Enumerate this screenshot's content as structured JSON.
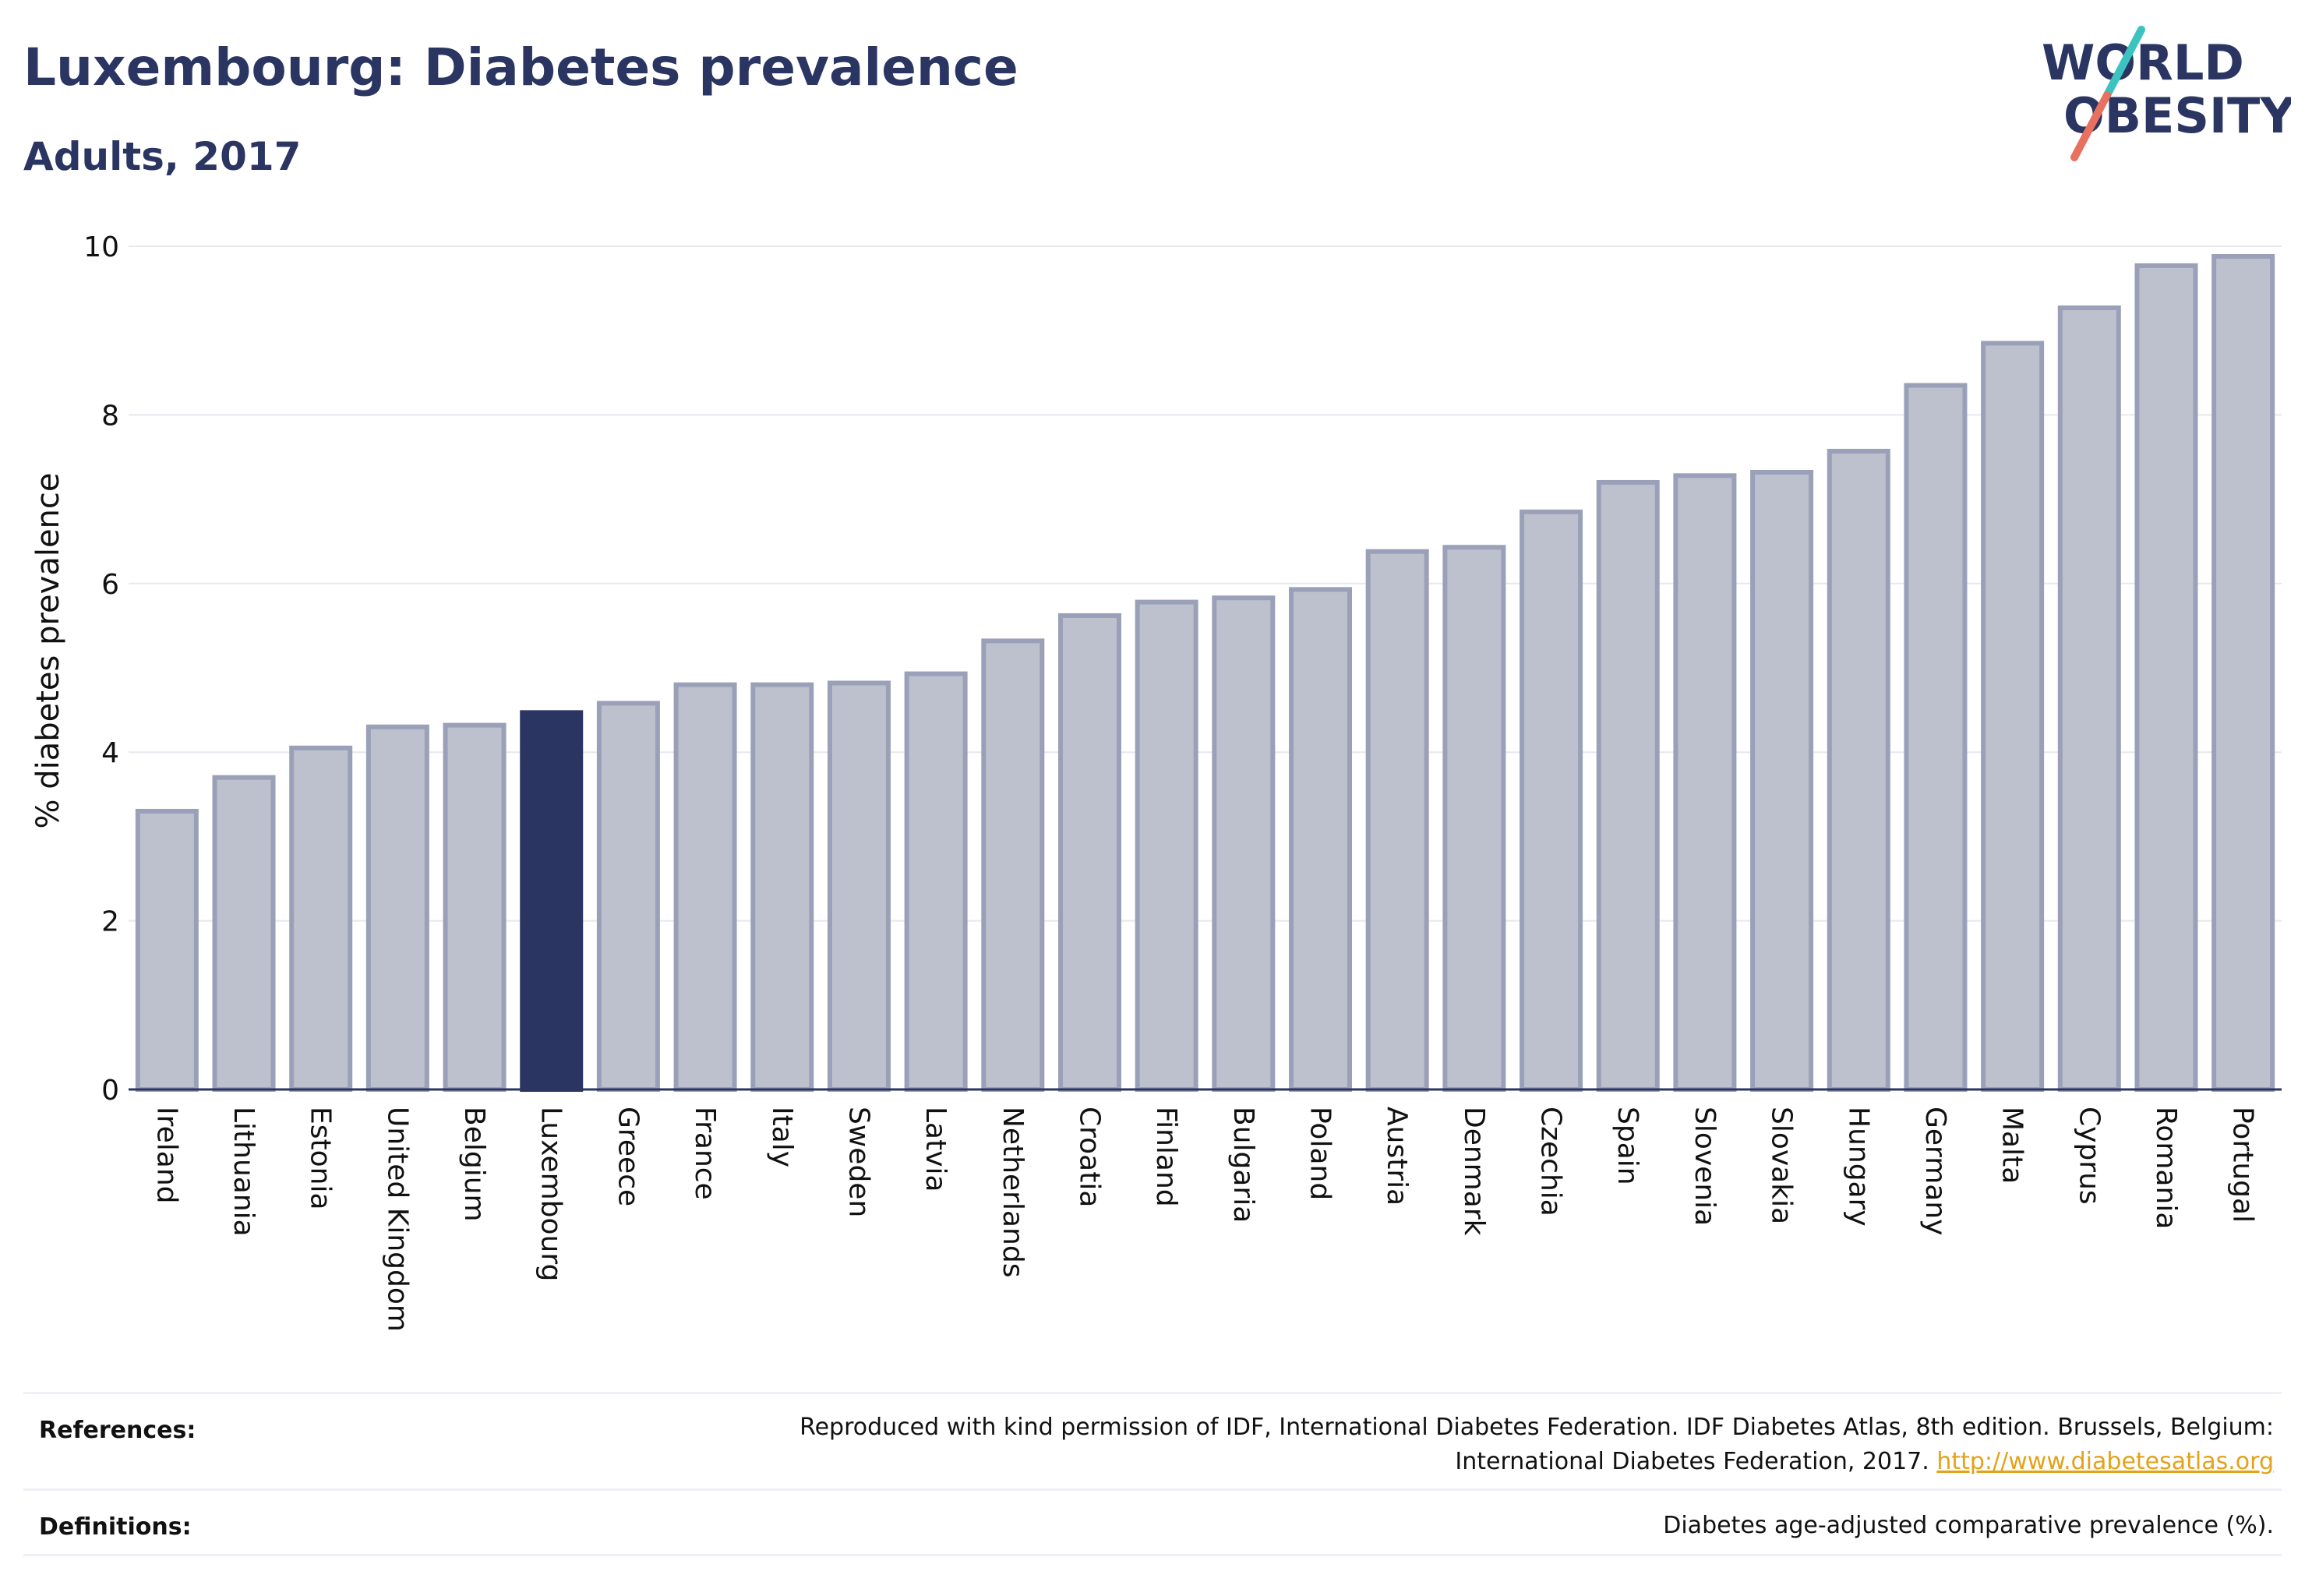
{
  "header": {
    "title": "Luxembourg: Diabetes prevalence",
    "subtitle": "Adults, 2017"
  },
  "logo": {
    "line1": "WORLD",
    "line2": "OBESITY",
    "text_color": "#2a3562",
    "slash_teal": "#3cc3c0",
    "slash_coral": "#e8705f"
  },
  "chart_data": {
    "type": "bar",
    "ylabel": "% diabetes prevalence",
    "ylim": [
      0,
      10
    ],
    "yticks": [
      0,
      2,
      4,
      6,
      8,
      10
    ],
    "grid": true,
    "highlight": "Luxembourg",
    "colors": {
      "bar": "#bdc1ce",
      "bar_edge": "#9aa0b8",
      "highlight": "#2a3562"
    },
    "categories": [
      "Ireland",
      "Lithuania",
      "Estonia",
      "United Kingdom",
      "Belgium",
      "Luxembourg",
      "Greece",
      "France",
      "Italy",
      "Sweden",
      "Latvia",
      "Netherlands",
      "Croatia",
      "Finland",
      "Bulgaria",
      "Poland",
      "Austria",
      "Denmark",
      "Czechia",
      "Spain",
      "Slovenia",
      "Slovakia",
      "Hungary",
      "Germany",
      "Malta",
      "Cyprus",
      "Romania",
      "Portugal"
    ],
    "values": [
      3.3,
      3.7,
      4.05,
      4.3,
      4.32,
      4.47,
      4.58,
      4.8,
      4.8,
      4.82,
      4.93,
      5.32,
      5.62,
      5.78,
      5.83,
      5.93,
      6.38,
      6.43,
      6.85,
      7.2,
      7.28,
      7.32,
      7.57,
      8.35,
      8.85,
      9.27,
      9.77,
      9.88
    ]
  },
  "footer": {
    "references_label": "References:",
    "references_line1": "Reproduced with kind permission of IDF, International Diabetes Federation. IDF Diabetes Atlas, 8th edition. Brussels, Belgium:",
    "references_line2": "International Diabetes Federation, 2017.",
    "references_link": "http://www.diabetesatlas.org",
    "definitions_label": "Definitions:",
    "definitions_text": "Diabetes age-adjusted comparative prevalence (%)."
  }
}
